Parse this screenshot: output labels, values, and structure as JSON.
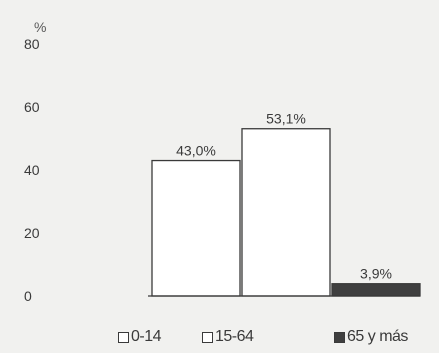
{
  "chart_data": {
    "type": "bar",
    "unit_label": "%",
    "categories": [
      "0-14",
      "15-64",
      "65 y más"
    ],
    "values": [
      43.0,
      53.1,
      3.9
    ],
    "value_labels": [
      "43,0%",
      "53,1%",
      "3,9%"
    ],
    "yticks": [
      "0",
      "20",
      "40",
      "60",
      "80"
    ],
    "ytick_values": [
      0,
      20,
      40,
      60,
      80
    ],
    "ylim": [
      0,
      80
    ],
    "grid": false,
    "legend_position": "bottom",
    "colors": {
      "white_bar": "#ffffff",
      "dark_bar": "#3f3f3f",
      "outline": "#3a3a3a"
    }
  },
  "legend": {
    "items": [
      {
        "label": "0-14",
        "fill": "#ffffff"
      },
      {
        "label": "15-64",
        "fill": "#ffffff"
      },
      {
        "label": "65 y más",
        "fill": "#3f3f3f"
      }
    ]
  }
}
